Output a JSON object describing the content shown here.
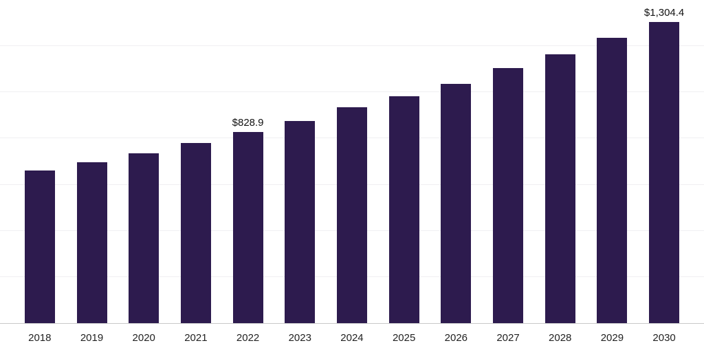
{
  "chart_data": {
    "type": "bar",
    "title": "",
    "xlabel": "",
    "ylabel": "",
    "categories": [
      "2018",
      "2019",
      "2020",
      "2021",
      "2022",
      "2023",
      "2024",
      "2025",
      "2026",
      "2027",
      "2028",
      "2029",
      "2030"
    ],
    "values": [
      662,
      698,
      737,
      781,
      828.9,
      877,
      934,
      984,
      1038,
      1104,
      1166,
      1235,
      1304.4
    ],
    "data_labels": {
      "2022": "$828.9",
      "2030": "$1,304.4"
    },
    "ylim": [
      0,
      1400
    ],
    "gridline_step": 200,
    "grid": true,
    "legend_position": "none",
    "bar_color": "#2d1b4e",
    "value_label_color": "#111111",
    "axis_tick_color": "#222222",
    "gridline_color": "#f0eff2",
    "axis_line_color": "#c9c9c9"
  }
}
